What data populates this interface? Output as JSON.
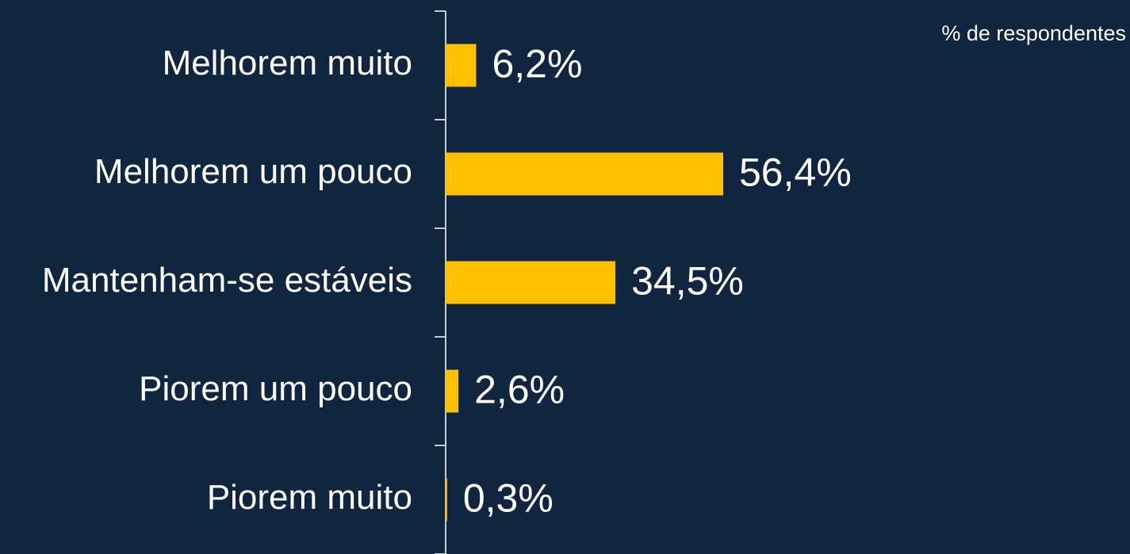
{
  "chart_data": {
    "type": "bar",
    "orientation": "horizontal",
    "subtitle": "% de respondentes",
    "categories": [
      "Melhorem muito",
      "Melhorem um pouco",
      "Mantenham-se estáveis",
      "Piorem um pouco",
      "Piorem muito"
    ],
    "values": [
      6.2,
      56.4,
      34.5,
      2.6,
      0.3
    ],
    "value_labels": [
      "6,2%",
      "56,4%",
      "34,5%",
      "2,6%",
      "0,3%"
    ],
    "color": "#ffc000"
  }
}
